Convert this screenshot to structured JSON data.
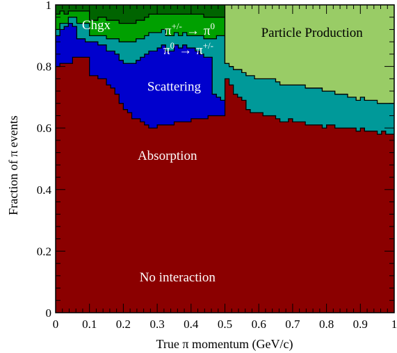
{
  "chart_data": {
    "type": "area",
    "stacked": true,
    "xlabel": "True π momentum (GeV/c)",
    "ylabel": "Fraction of π events",
    "xlim": [
      0,
      1
    ],
    "ylim": [
      0,
      1
    ],
    "x_ticks": [
      "0",
      "0.1",
      "0.2",
      "0.3",
      "0.4",
      "0.5",
      "0.6",
      "0.7",
      "0.8",
      "0.9",
      "1"
    ],
    "y_ticks": [
      "0",
      "0.2",
      "0.4",
      "0.6",
      "0.8",
      "1"
    ],
    "bin_width": 0.0125,
    "x": [
      0.0,
      0.0125,
      0.025,
      0.0375,
      0.05,
      0.0625,
      0.075,
      0.0875,
      0.1,
      0.1125,
      0.125,
      0.1375,
      0.15,
      0.1625,
      0.175,
      0.1875,
      0.2,
      0.2125,
      0.225,
      0.2375,
      0.25,
      0.2625,
      0.275,
      0.2875,
      0.3,
      0.3125,
      0.325,
      0.3375,
      0.35,
      0.3625,
      0.375,
      0.3875,
      0.4,
      0.4125,
      0.425,
      0.4375,
      0.45,
      0.4625,
      0.475,
      0.4875,
      0.5,
      0.5125,
      0.525,
      0.5375,
      0.55,
      0.5625,
      0.575,
      0.5875,
      0.6,
      0.6125,
      0.625,
      0.6375,
      0.65,
      0.6625,
      0.675,
      0.6875,
      0.7,
      0.7125,
      0.725,
      0.7375,
      0.75,
      0.7625,
      0.775,
      0.7875,
      0.8,
      0.8125,
      0.825,
      0.8375,
      0.85,
      0.8625,
      0.875,
      0.8875,
      0.9,
      0.9125,
      0.925,
      0.9375,
      0.95,
      0.9625,
      0.975,
      0.9875
    ],
    "series": [
      {
        "name": "No interaction",
        "color": "#8b0000",
        "values": [
          0.8,
          0.81,
          0.81,
          0.81,
          0.83,
          0.83,
          0.83,
          0.83,
          0.77,
          0.77,
          0.76,
          0.76,
          0.74,
          0.73,
          0.71,
          0.68,
          0.66,
          0.65,
          0.63,
          0.63,
          0.62,
          0.61,
          0.6,
          0.6,
          0.61,
          0.61,
          0.61,
          0.61,
          0.62,
          0.62,
          0.62,
          0.62,
          0.63,
          0.63,
          0.63,
          0.63,
          0.64,
          0.64,
          0.64,
          0.64,
          0.76,
          0.74,
          0.71,
          0.7,
          0.69,
          0.66,
          0.65,
          0.65,
          0.65,
          0.64,
          0.64,
          0.64,
          0.63,
          0.62,
          0.62,
          0.63,
          0.62,
          0.62,
          0.62,
          0.61,
          0.61,
          0.61,
          0.61,
          0.6,
          0.61,
          0.61,
          0.6,
          0.6,
          0.6,
          0.6,
          0.6,
          0.59,
          0.6,
          0.59,
          0.59,
          0.59,
          0.58,
          0.59,
          0.58,
          0.58
        ]
      },
      {
        "name": "Absorption",
        "color": "#0000cd",
        "values": [
          0.1,
          0.11,
          0.12,
          0.13,
          0.1,
          0.06,
          0.06,
          0.05,
          0.11,
          0.11,
          0.11,
          0.11,
          0.11,
          0.12,
          0.13,
          0.14,
          0.15,
          0.16,
          0.18,
          0.19,
          0.21,
          0.23,
          0.25,
          0.25,
          0.25,
          0.26,
          0.24,
          0.24,
          0.25,
          0.24,
          0.25,
          0.24,
          0.23,
          0.22,
          0.21,
          0.2,
          0.19,
          0.07,
          0.06,
          0.05,
          0.0,
          0.0,
          0.0,
          0.0,
          0.0,
          0.0,
          0.0,
          0.0,
          0.0,
          0.0,
          0.0,
          0.0,
          0.0,
          0.0,
          0.0,
          0.0,
          0.0,
          0.0,
          0.0,
          0.0,
          0.0,
          0.0,
          0.0,
          0.0,
          0.0,
          0.0,
          0.0,
          0.0,
          0.0,
          0.0,
          0.0,
          0.0,
          0.0,
          0.0,
          0.0,
          0.0,
          0.0,
          0.0,
          0.0,
          0.0
        ]
      },
      {
        "name": "Scattering",
        "color": "#009999",
        "values": [
          0.02,
          0.02,
          0.01,
          0.02,
          0.03,
          0.05,
          0.05,
          0.06,
          0.02,
          0.02,
          0.03,
          0.03,
          0.04,
          0.04,
          0.05,
          0.06,
          0.07,
          0.07,
          0.07,
          0.07,
          0.06,
          0.06,
          0.06,
          0.06,
          0.05,
          0.05,
          0.05,
          0.05,
          0.04,
          0.04,
          0.04,
          0.04,
          0.04,
          0.05,
          0.06,
          0.06,
          0.06,
          0.18,
          0.2,
          0.21,
          0.05,
          0.06,
          0.08,
          0.09,
          0.09,
          0.11,
          0.12,
          0.11,
          0.11,
          0.12,
          0.12,
          0.12,
          0.12,
          0.12,
          0.12,
          0.11,
          0.12,
          0.12,
          0.12,
          0.12,
          0.12,
          0.12,
          0.12,
          0.12,
          0.11,
          0.11,
          0.11,
          0.11,
          0.11,
          0.1,
          0.1,
          0.1,
          0.1,
          0.1,
          0.1,
          0.1,
          0.1,
          0.09,
          0.1,
          0.1
        ]
      },
      {
        "name": "Chgx",
        "color": "#00a000",
        "values": [
          0.05,
          0.04,
          0.03,
          0.02,
          0.02,
          0.04,
          0.04,
          0.04,
          0.05,
          0.05,
          0.06,
          0.06,
          0.06,
          0.06,
          0.06,
          0.06,
          0.06,
          0.06,
          0.06,
          0.06,
          0.06,
          0.06,
          0.06,
          0.06,
          0.06,
          0.05,
          0.07,
          0.07,
          0.06,
          0.07,
          0.06,
          0.07,
          0.07,
          0.07,
          0.07,
          0.07,
          0.07,
          0.07,
          0.06,
          0.06,
          0.0,
          0.0,
          0.0,
          0.0,
          0.0,
          0.0,
          0.0,
          0.0,
          0.0,
          0.0,
          0.0,
          0.0,
          0.0,
          0.0,
          0.0,
          0.0,
          0.0,
          0.0,
          0.0,
          0.0,
          0.0,
          0.0,
          0.0,
          0.0,
          0.0,
          0.0,
          0.0,
          0.0,
          0.0,
          0.0,
          0.0,
          0.0,
          0.0,
          0.0,
          0.0,
          0.0,
          0.0,
          0.0,
          0.0,
          0.0
        ]
      },
      {
        "name": "π+/- → π0, π0 → π+/-",
        "color": "#006400",
        "values": [
          0.03,
          0.02,
          0.03,
          0.02,
          0.02,
          0.02,
          0.02,
          0.02,
          0.05,
          0.05,
          0.04,
          0.04,
          0.05,
          0.05,
          0.05,
          0.06,
          0.06,
          0.06,
          0.06,
          0.05,
          0.05,
          0.04,
          0.03,
          0.03,
          0.03,
          0.03,
          0.03,
          0.03,
          0.03,
          0.03,
          0.03,
          0.03,
          0.03,
          0.03,
          0.03,
          0.04,
          0.04,
          0.04,
          0.04,
          0.04,
          0.0,
          0.0,
          0.0,
          0.0,
          0.0,
          0.0,
          0.0,
          0.0,
          0.0,
          0.0,
          0.0,
          0.0,
          0.0,
          0.0,
          0.0,
          0.0,
          0.0,
          0.0,
          0.0,
          0.0,
          0.0,
          0.0,
          0.0,
          0.0,
          0.0,
          0.0,
          0.0,
          0.0,
          0.0,
          0.0,
          0.0,
          0.0,
          0.0,
          0.0,
          0.0,
          0.0,
          0.0,
          0.0,
          0.0,
          0.0
        ]
      },
      {
        "name": "Particle Production",
        "color": "#99cc66",
        "values": [
          0.0,
          0.0,
          0.0,
          0.0,
          0.0,
          0.0,
          0.0,
          0.0,
          0.0,
          0.0,
          0.0,
          0.0,
          0.0,
          0.0,
          0.0,
          0.0,
          0.0,
          0.0,
          0.0,
          0.0,
          0.0,
          0.0,
          0.0,
          0.0,
          0.0,
          0.0,
          0.0,
          0.0,
          0.0,
          0.0,
          0.0,
          0.0,
          0.0,
          0.0,
          0.0,
          0.0,
          0.0,
          0.0,
          0.0,
          0.0,
          0.19,
          0.2,
          0.21,
          0.21,
          0.22,
          0.23,
          0.23,
          0.24,
          0.24,
          0.24,
          0.24,
          0.24,
          0.25,
          0.26,
          0.26,
          0.26,
          0.26,
          0.26,
          0.26,
          0.27,
          0.27,
          0.27,
          0.27,
          0.28,
          0.28,
          0.28,
          0.29,
          0.29,
          0.29,
          0.3,
          0.3,
          0.31,
          0.3,
          0.31,
          0.31,
          0.31,
          0.32,
          0.32,
          0.32,
          0.32
        ]
      }
    ],
    "labels": [
      {
        "text": "Chgx",
        "x": 0.12,
        "y": 0.935,
        "color": "#ffffff"
      },
      {
        "text": "Scattering",
        "x": 0.35,
        "y": 0.735,
        "color": "#ffffff"
      },
      {
        "text": "Absorption",
        "x": 0.33,
        "y": 0.51,
        "color": "#ffffff"
      },
      {
        "text": "No interaction",
        "x": 0.36,
        "y": 0.115,
        "color": "#ffffff"
      },
      {
        "text": "Particle Production",
        "x": 0.757,
        "y": 0.91,
        "color": "#000000"
      }
    ],
    "exchange_labels": [
      {
        "base": "π",
        "sup": "+/-",
        "arrow": "→",
        "target": "π",
        "target_sup": "0"
      },
      {
        "base": "π",
        "sup": "0",
        "arrow": "→",
        "target": "π",
        "target_sup": "+/-"
      }
    ],
    "grid": false
  }
}
